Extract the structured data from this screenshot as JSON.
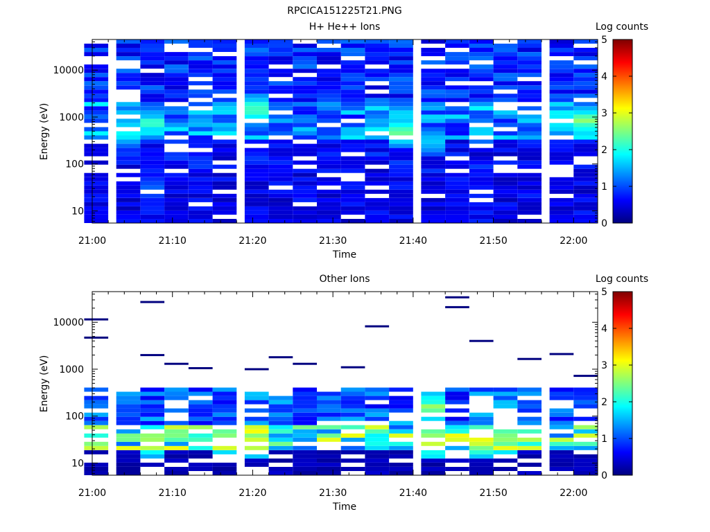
{
  "figure_title": "RPCICA151225T21.PNG",
  "colorbar_ticks": [
    "0",
    "1",
    "2",
    "3",
    "4",
    "5"
  ],
  "colors": {
    "colormap": [
      "#00007f",
      "#0000ff",
      "#007fff",
      "#00ffff",
      "#7fff7f",
      "#ffff00",
      "#ff7f00",
      "#ff0000",
      "#7f0000"
    ],
    "background": "#ffffff"
  },
  "chart_data": [
    {
      "type": "heatmap",
      "title": "H+ He++ Ions",
      "colorbar_label": "Log counts",
      "xlabel": "Time",
      "ylabel": "Energy (eV)",
      "x_ticks": [
        "21:00",
        "21:10",
        "21:20",
        "21:30",
        "21:40",
        "21:50",
        "22:00"
      ],
      "y_ticks": [
        "10",
        "100",
        "1000",
        "10000"
      ],
      "y_scale": "log",
      "xlim": [
        "21:00",
        "22:03"
      ],
      "ylim": [
        5.5,
        45000
      ],
      "zlim": [
        0,
        5
      ],
      "time_bins": [
        "21:02",
        "21:06",
        "21:09",
        "21:12",
        "21:15",
        "21:18",
        "21:22",
        "21:25",
        "21:28",
        "21:31",
        "21:34",
        "21:37",
        "21:40",
        "21:44",
        "21:47",
        "21:50",
        "21:53",
        "21:56",
        "22:00",
        "22:03"
      ],
      "bands": [
        {
          "e_min": 6,
          "e_max": 60,
          "level": 0.6
        },
        {
          "e_min": 60,
          "e_max": 300,
          "level": 0.7
        },
        {
          "e_min": 300,
          "e_max": 2000,
          "level": 1.4
        },
        {
          "e_min": 2000,
          "e_max": 45000,
          "level": 0.9
        }
      ],
      "peaks": [
        {
          "time": "21:06",
          "energy": 500,
          "level": 2.3
        },
        {
          "time": "21:09",
          "energy": 700,
          "level": 2.4
        },
        {
          "time": "21:22",
          "energy": 1400,
          "level": 2.5
        },
        {
          "time": "21:40",
          "energy": 500,
          "level": 2.6
        },
        {
          "time": "21:44",
          "energy": 300,
          "level": 1.9
        },
        {
          "time": "21:50",
          "energy": 500,
          "level": 1.8
        },
        {
          "time": "21:59",
          "energy": 800,
          "level": 2.3
        },
        {
          "time": "22:03",
          "energy": 800,
          "level": 2.8
        },
        {
          "time": "21:09",
          "energy": 30,
          "level": 1.3
        }
      ]
    },
    {
      "type": "heatmap",
      "title": "Other Ions",
      "colorbar_label": "Log counts",
      "xlabel": "Time",
      "ylabel": "Energy (eV)",
      "x_ticks": [
        "21:00",
        "21:10",
        "21:20",
        "21:30",
        "21:40",
        "21:50",
        "22:00"
      ],
      "y_ticks": [
        "10",
        "100",
        "1000",
        "10000"
      ],
      "y_scale": "log",
      "xlim": [
        "21:00",
        "22:03"
      ],
      "ylim": [
        5.5,
        45000
      ],
      "zlim": [
        0,
        5
      ],
      "time_bins": [
        "21:02",
        "21:06",
        "21:09",
        "21:12",
        "21:15",
        "21:18",
        "21:22",
        "21:25",
        "21:28",
        "21:31",
        "21:34",
        "21:37",
        "21:40",
        "21:44",
        "21:47",
        "21:50",
        "21:53",
        "21:56",
        "22:00",
        "22:03"
      ],
      "bands": [
        {
          "e_min": 6,
          "e_max": 18,
          "level": 0.3
        },
        {
          "e_min": 18,
          "e_max": 60,
          "level": 2.3
        },
        {
          "e_min": 60,
          "e_max": 400,
          "level": 1.2
        }
      ],
      "peaks": [
        {
          "time": "21:09",
          "energy": 30,
          "level": 3.2
        },
        {
          "time": "21:18",
          "energy": 30,
          "level": 3.1
        },
        {
          "time": "21:22",
          "energy": 30,
          "level": 3.3
        },
        {
          "time": "21:44",
          "energy": 30,
          "level": 3.5
        },
        {
          "time": "21:44",
          "energy": 150,
          "level": 2.8
        },
        {
          "time": "21:50",
          "energy": 30,
          "level": 3.2
        },
        {
          "time": "21:53",
          "energy": 30,
          "level": 2.9
        }
      ],
      "sparse_lines": [
        {
          "time": "21:02",
          "energy": 11500
        },
        {
          "time": "21:02",
          "energy": 4700
        },
        {
          "time": "21:09",
          "energy": 27000
        },
        {
          "time": "21:09",
          "energy": 2000
        },
        {
          "time": "21:12",
          "energy": 1300
        },
        {
          "time": "21:15",
          "energy": 1050
        },
        {
          "time": "21:22",
          "energy": 1000
        },
        {
          "time": "21:25",
          "energy": 1800
        },
        {
          "time": "21:28",
          "energy": 1300
        },
        {
          "time": "21:34",
          "energy": 1100
        },
        {
          "time": "21:37",
          "energy": 8200
        },
        {
          "time": "21:47",
          "energy": 34000
        },
        {
          "time": "21:47",
          "energy": 21000
        },
        {
          "time": "21:50",
          "energy": 4000
        },
        {
          "time": "21:56",
          "energy": 1650
        },
        {
          "time": "22:00",
          "energy": 2100
        },
        {
          "time": "22:03",
          "energy": 720
        }
      ]
    }
  ]
}
